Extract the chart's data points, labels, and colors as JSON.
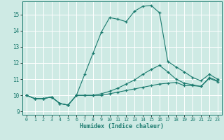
{
  "xlabel": "Humidex (Indice chaleur)",
  "background_color": "#ceeae4",
  "line_color": "#1a7a6e",
  "xlim": [
    -0.5,
    23.5
  ],
  "ylim": [
    8.8,
    15.8
  ],
  "yticks": [
    9,
    10,
    11,
    12,
    13,
    14,
    15
  ],
  "xticks": [
    0,
    1,
    2,
    3,
    4,
    5,
    6,
    7,
    8,
    9,
    10,
    11,
    12,
    13,
    14,
    15,
    16,
    17,
    18,
    19,
    20,
    21,
    22,
    23
  ],
  "curve1_x": [
    0,
    1,
    2,
    3,
    4,
    5,
    6,
    7,
    8,
    9,
    10,
    11,
    12,
    13,
    14,
    15,
    16,
    17,
    18,
    19,
    20,
    21,
    22,
    23
  ],
  "curve1_y": [
    10.0,
    9.8,
    9.8,
    9.9,
    9.5,
    9.4,
    10.0,
    10.0,
    10.0,
    10.0,
    10.1,
    10.2,
    10.3,
    10.4,
    10.5,
    10.6,
    10.7,
    10.75,
    10.8,
    10.6,
    10.6,
    10.55,
    11.05,
    10.85
  ],
  "curve2_x": [
    0,
    1,
    2,
    3,
    4,
    5,
    6,
    7,
    8,
    9,
    10,
    11,
    12,
    13,
    14,
    15,
    16,
    17,
    18,
    19,
    20,
    21,
    22,
    23
  ],
  "curve2_y": [
    10.0,
    9.8,
    9.8,
    9.9,
    9.5,
    9.4,
    10.0,
    10.0,
    10.0,
    10.1,
    10.25,
    10.45,
    10.7,
    10.95,
    11.3,
    11.6,
    11.85,
    11.45,
    11.0,
    10.75,
    10.65,
    10.55,
    11.1,
    10.9
  ],
  "curve3_x": [
    0,
    1,
    2,
    3,
    4,
    5,
    6,
    7,
    8,
    9,
    10,
    11,
    12,
    13,
    14,
    15,
    16,
    17,
    18,
    19,
    20,
    21,
    22,
    23
  ],
  "curve3_y": [
    10.0,
    9.8,
    9.8,
    9.9,
    9.5,
    9.4,
    10.0,
    11.3,
    12.6,
    13.9,
    14.8,
    14.7,
    14.55,
    15.2,
    15.5,
    15.55,
    15.1,
    12.1,
    11.75,
    11.45,
    11.1,
    10.9,
    11.3,
    11.0
  ]
}
